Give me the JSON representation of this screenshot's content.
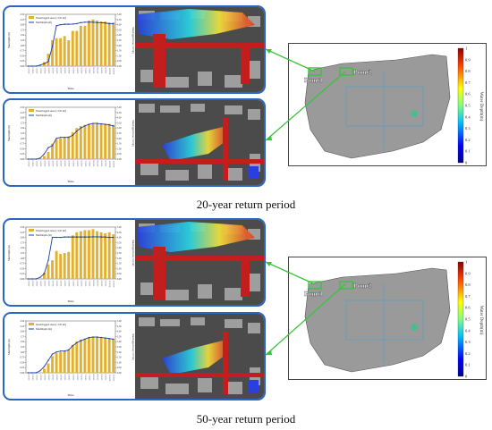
{
  "figures": [
    {
      "caption": "20-year return period",
      "points": [
        "Point1",
        "Point2"
      ],
      "colorbar_ticks": [
        "1",
        "0.9",
        "0.8",
        "0.7",
        "0.6",
        "0.5",
        "0.4",
        "0.3",
        "0.2",
        "0.1",
        "0"
      ],
      "colorbar_label": "Water Depth(m)"
    },
    {
      "caption": "50-year return period",
      "points": [
        "Point1",
        "Point2"
      ],
      "colorbar_ticks": [
        "1",
        "0.9",
        "0.8",
        "0.7",
        "0.6",
        "0.5",
        "0.4",
        "0.3",
        "0.2",
        "0.1",
        "0"
      ],
      "colorbar_label": "Water Depth(m)"
    }
  ],
  "chart_data": [
    {
      "type": "bar",
      "legend": [
        "Waterlogged Area (×10⁴ m²)",
        "MaxDepth (m)"
      ],
      "xlabel": "Time",
      "ylabel_left": "MaxDepth (m)",
      "ylabel_right": "Waterlogged Area (×10⁴ m²)",
      "ylim": [
        0,
        2.5
      ],
      "ylim_right": [
        0,
        5.0
      ],
      "yticks_left": [
        "0.00",
        "0.25",
        "0.50",
        "0.75",
        "1.00",
        "1.25",
        "1.50",
        "1.75",
        "2.00",
        "2.25",
        "2.50"
      ],
      "yticks_right": [
        "0.00",
        "0.50",
        "1.00",
        "1.50",
        "2.00",
        "2.50",
        "3.00",
        "3.50",
        "4.00",
        "4.50",
        "5.00"
      ],
      "categories": [
        "0:00:00",
        "0:30:00",
        "1:00:00",
        "1:30:00",
        "2:00:00",
        "2:30:00",
        "3:00:00",
        "3:30:00",
        "4:00:00",
        "4:30:00",
        "5:00:00",
        "5:30:00",
        "6:00:00",
        "6:30:00",
        "7:00:00",
        "7:30:00",
        "8:00:00",
        "8:30:00",
        "9:00:00",
        "9:30:00",
        "10:00:00",
        "10:30:00"
      ],
      "series": [
        {
          "name": "Waterlogged Area (×10⁴ m²)",
          "values": [
            0,
            0,
            0,
            0,
            0.4,
            1.2,
            2.5,
            2.7,
            2.7,
            2.9,
            2.5,
            3.4,
            3.4,
            3.9,
            3.9,
            4.4,
            4.5,
            4.4,
            4.3,
            4.3,
            4.2,
            4.2
          ]
        },
        {
          "name": "MaxDepth (m)",
          "values": [
            0,
            0,
            0,
            0.05,
            0.12,
            0.22,
            0.95,
            1.95,
            2.0,
            2.02,
            2.02,
            2.03,
            2.05,
            2.1,
            2.12,
            2.12,
            2.12,
            2.1,
            2.1,
            2.08,
            2.05,
            2.05
          ]
        }
      ]
    },
    {
      "type": "bar",
      "legend": [
        "Waterlogged Area (×10⁴ m²)",
        "MaxDepth (m)"
      ],
      "xlabel": "Time",
      "ylabel_left": "MaxDepth (m)",
      "ylabel_right": "Waterlogged Area (×10⁴ m²)",
      "ylim": [
        0,
        2.5
      ],
      "ylim_right": [
        0,
        5.0
      ],
      "yticks_left": [
        "0.00",
        "0.25",
        "0.50",
        "0.75",
        "1.00",
        "1.25",
        "1.50",
        "1.75",
        "2.00",
        "2.25",
        "2.50"
      ],
      "yticks_right": [
        "0.00",
        "0.50",
        "1.00",
        "1.50",
        "2.00",
        "2.50",
        "3.00",
        "3.50",
        "4.00",
        "4.50",
        "5.00"
      ],
      "categories": [
        "0:00:00",
        "0:30:00",
        "1:00:00",
        "1:30:00",
        "2:00:00",
        "2:30:00",
        "3:00:00",
        "3:30:00",
        "4:00:00",
        "4:30:00",
        "5:00:00",
        "5:30:00",
        "6:00:00",
        "6:30:00",
        "7:00:00",
        "7:30:00",
        "8:00:00",
        "8:30:00",
        "9:00:00",
        "9:30:00",
        "10:00:00",
        "10:30:00"
      ],
      "series": [
        {
          "name": "Waterlogged Area (×10⁴ m²)",
          "values": [
            0,
            0,
            0,
            0,
            0.3,
            0.7,
            1.5,
            1.9,
            2.0,
            2.1,
            2.2,
            2.6,
            3.0,
            3.2,
            3.3,
            3.4,
            3.4,
            3.5,
            3.4,
            3.4,
            3.4,
            3.3
          ]
        },
        {
          "name": "MaxDepth (m)",
          "values": [
            0,
            0,
            0,
            0.05,
            0.25,
            0.55,
            0.65,
            1.0,
            1.05,
            1.05,
            1.05,
            1.15,
            1.35,
            1.5,
            1.6,
            1.68,
            1.72,
            1.72,
            1.7,
            1.68,
            1.65,
            1.6
          ]
        }
      ]
    },
    {
      "type": "bar",
      "legend": [
        "Waterlogged Area (×10⁴ m²)",
        "MaxDepth (m)"
      ],
      "xlabel": "Time",
      "ylabel_left": "MaxDepth (m)",
      "ylabel_right": "Waterlogged Area (×10⁴ m²)",
      "ylim": [
        0,
        2.5
      ],
      "ylim_right": [
        0,
        5.0
      ],
      "yticks_left": [
        "0.00",
        "0.25",
        "0.50",
        "0.75",
        "1.00",
        "1.25",
        "1.50",
        "1.75",
        "2.00",
        "2.25",
        "2.50"
      ],
      "yticks_right": [
        "0.00",
        "0.50",
        "1.00",
        "1.50",
        "2.00",
        "2.50",
        "3.00",
        "3.50",
        "4.00",
        "4.50",
        "5.00"
      ],
      "categories": [
        "0:00:00",
        "0:30:00",
        "1:00:00",
        "1:30:00",
        "2:00:00",
        "2:30:00",
        "3:00:00",
        "3:30:00",
        "4:00:00",
        "4:30:00",
        "5:00:00",
        "5:30:00",
        "6:00:00",
        "6:30:00",
        "7:00:00",
        "7:30:00",
        "8:00:00",
        "8:30:00",
        "9:00:00",
        "9:30:00",
        "10:00:00",
        "10:30:00"
      ],
      "series": [
        {
          "name": "Waterlogged Area (×10⁴ m²)",
          "values": [
            0,
            0,
            0,
            0,
            0.6,
            1.4,
            1.8,
            2.7,
            2.4,
            2.5,
            2.6,
            4.2,
            4.5,
            4.6,
            4.7,
            4.7,
            4.8,
            4.6,
            4.5,
            4.4,
            4.5,
            4.3
          ]
        },
        {
          "name": "MaxDepth (m)",
          "values": [
            0,
            0,
            0,
            0.08,
            0.25,
            0.9,
            2.0,
            2.0,
            2.0,
            2.02,
            2.02,
            2.02,
            2.02,
            2.02,
            2.02,
            2.02,
            2.03,
            2.03,
            2.02,
            2.02,
            2.0,
            2.0
          ]
        }
      ]
    },
    {
      "type": "bar",
      "legend": [
        "Waterlogged Area (×10⁴ m²)",
        "MaxDepth (m)"
      ],
      "xlabel": "Time",
      "ylabel_left": "MaxDepth (m)",
      "ylabel_right": "Waterlogged Area (×10⁴ m²)",
      "ylim": [
        0,
        2.5
      ],
      "ylim_right": [
        0,
        5.0
      ],
      "yticks_left": [
        "0.00",
        "0.25",
        "0.50",
        "0.75",
        "1.00",
        "1.25",
        "1.50",
        "1.75",
        "2.00",
        "2.25",
        "2.50"
      ],
      "yticks_right": [
        "0.00",
        "0.50",
        "1.00",
        "1.50",
        "2.00",
        "2.50",
        "3.00",
        "3.50",
        "4.00",
        "4.50",
        "5.00"
      ],
      "categories": [
        "0:00:00",
        "0:30:00",
        "1:00:00",
        "1:30:00",
        "2:00:00",
        "2:30:00",
        "3:00:00",
        "3:30:00",
        "4:00:00",
        "4:30:00",
        "5:00:00",
        "5:30:00",
        "6:00:00",
        "6:30:00",
        "7:00:00",
        "7:30:00",
        "8:00:00",
        "8:30:00",
        "9:00:00",
        "9:30:00",
        "10:00:00",
        "10:30:00"
      ],
      "series": [
        {
          "name": "Waterlogged Area (×10⁴ m²)",
          "values": [
            0,
            0,
            0,
            0,
            0.4,
            0.9,
            1.6,
            1.9,
            2.0,
            2.1,
            2.2,
            2.7,
            3.0,
            3.2,
            3.3,
            3.4,
            3.5,
            3.5,
            3.4,
            3.4,
            3.3,
            3.3
          ]
        },
        {
          "name": "MaxDepth (m)",
          "values": [
            0,
            0,
            0,
            0.1,
            0.3,
            0.6,
            0.9,
            1.0,
            1.05,
            1.05,
            1.1,
            1.3,
            1.45,
            1.55,
            1.62,
            1.7,
            1.72,
            1.72,
            1.7,
            1.68,
            1.65,
            1.62
          ]
        }
      ]
    }
  ]
}
